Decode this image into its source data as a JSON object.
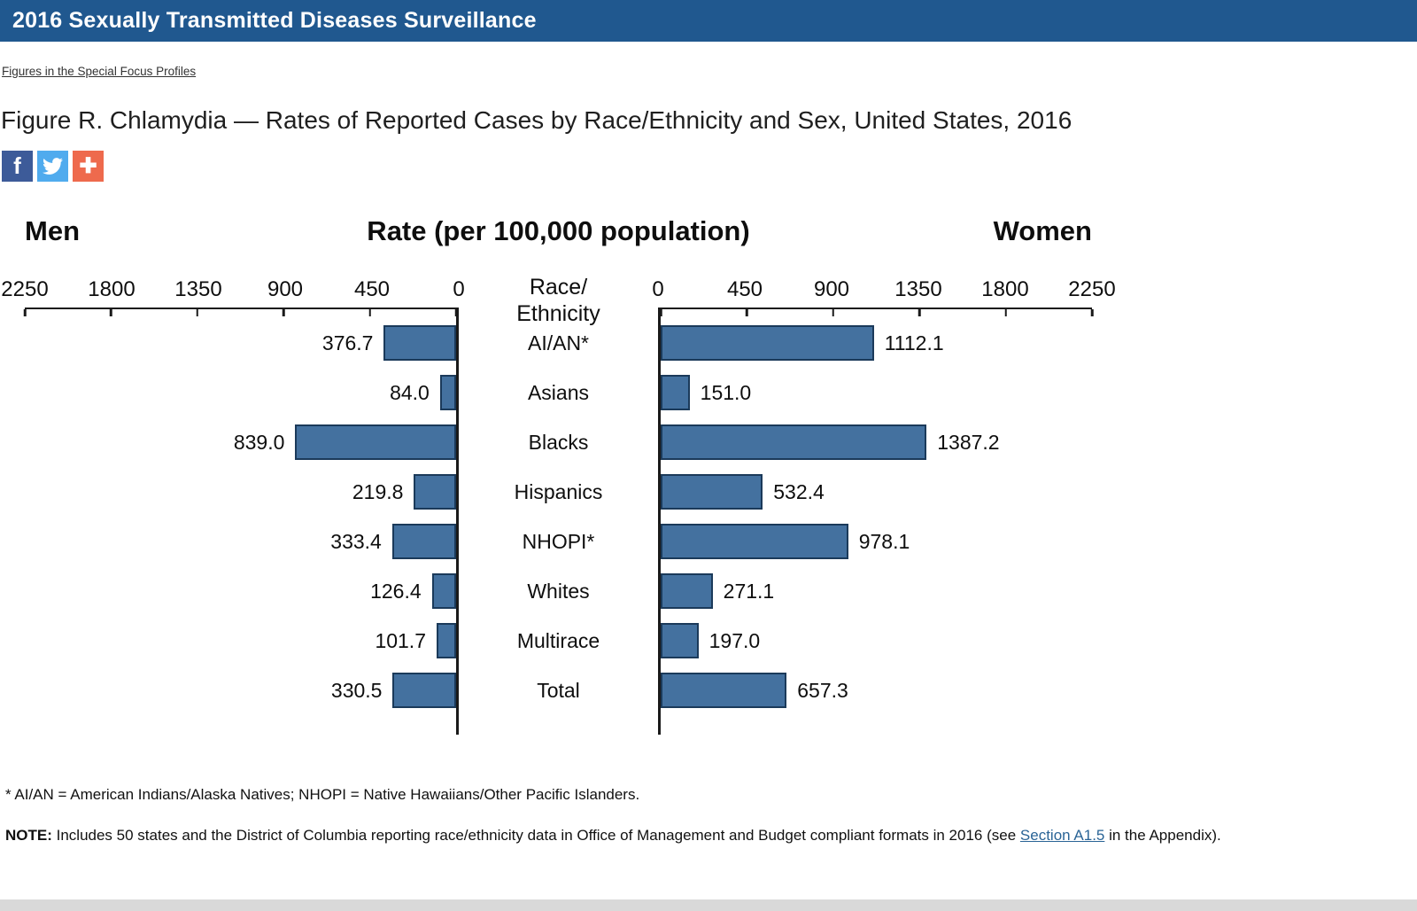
{
  "theme": {
    "header_bg": "#20588f",
    "facebook_bg": "#3d5b99",
    "twitter_bg": "#50abee",
    "plus_bg": "#ee6a4d",
    "bar_fill": "#44719f",
    "bar_border": "#1b3a5a"
  },
  "header": {
    "title": "2016 Sexually Transmitted Diseases Surveillance"
  },
  "breadcrumb": {
    "label": "Figures in the Special Focus Profiles"
  },
  "figure": {
    "title": "Figure R. Chlamydia — Rates of Reported Cases by Race/Ethnicity and Sex, United States, 2016"
  },
  "share": {
    "facebook_glyph": "f",
    "plus_glyph": "✚"
  },
  "chart_data": {
    "type": "bar",
    "subtype": "butterfly",
    "title": "Rate (per 100,000 population)",
    "left_header": "Men",
    "right_header": "Women",
    "center_header_line1": "Race/",
    "center_header_line2": "Ethnicity",
    "axis_max": 2250,
    "axis_ticks": [
      0,
      450,
      900,
      1350,
      1800,
      2250
    ],
    "categories": [
      "AI/AN*",
      "Asians",
      "Blacks",
      "Hispanics",
      "NHOPI*",
      "Whites",
      "Multirace",
      "Total"
    ],
    "series": [
      {
        "name": "Men",
        "values": [
          376.7,
          84.0,
          839.0,
          219.8,
          333.4,
          126.4,
          101.7,
          330.5
        ]
      },
      {
        "name": "Women",
        "values": [
          1112.1,
          151.0,
          1387.2,
          532.4,
          978.1,
          271.1,
          197.0,
          657.3
        ]
      }
    ],
    "legend_position": "none",
    "grid": false
  },
  "footnote": "* AI/AN = American Indians/Alaska Natives; NHOPI = Native Hawaiians/Other Pacific Islanders.",
  "note": {
    "label": "NOTE:",
    "text_before_link": " Includes 50 states and the District of Columbia reporting race/ethnicity data in Office of Management and Budget compliant formats in 2016 (see ",
    "link": "Section A1.5",
    "text_after_link": " in the Appendix)."
  }
}
